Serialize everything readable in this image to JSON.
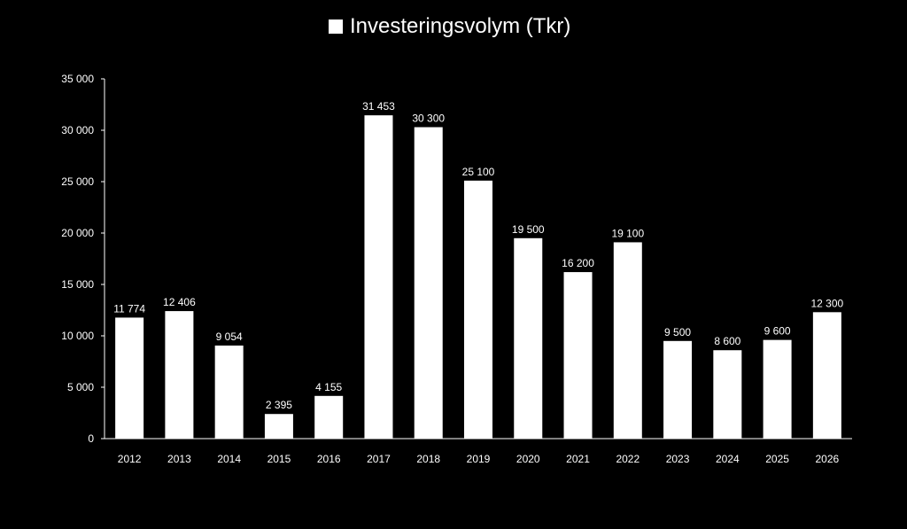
{
  "chart_data": {
    "type": "bar",
    "title": "",
    "xlabel": "",
    "ylabel": "",
    "legend": {
      "position": "top-center"
    },
    "grid": false,
    "ylim": [
      0,
      35000
    ],
    "yticks": [
      0,
      5000,
      10000,
      15000,
      20000,
      25000,
      30000,
      35000
    ],
    "ytick_labels": [
      "0",
      "5 000",
      "10 000",
      "15 000",
      "20 000",
      "25 000",
      "30 000",
      "35 000"
    ],
    "categories": [
      "2012",
      "2013",
      "2014",
      "2015",
      "2016",
      "2017",
      "2018",
      "2019",
      "2020",
      "2021",
      "2022",
      "2023",
      "2024",
      "2025",
      "2026"
    ],
    "series": [
      {
        "name": "Investeringsvolym (Tkr)",
        "color": "#ffffff",
        "values": [
          11774,
          12406,
          9054,
          2395,
          4155,
          31453,
          30300,
          25100,
          19500,
          16200,
          19100,
          9500,
          8600,
          9600,
          12300
        ],
        "data_labels": [
          "11 774",
          "12 406",
          "9 054",
          "2 395",
          "4 155",
          "31 453",
          "30 300",
          "25 100",
          "19 500",
          "16 200",
          "19 100",
          "9 500",
          "8 600",
          "9 600",
          "12 300"
        ]
      }
    ]
  },
  "colors": {
    "background": "#000000",
    "bar": "#ffffff",
    "axis": "#ffffff",
    "text": "#ffffff"
  }
}
